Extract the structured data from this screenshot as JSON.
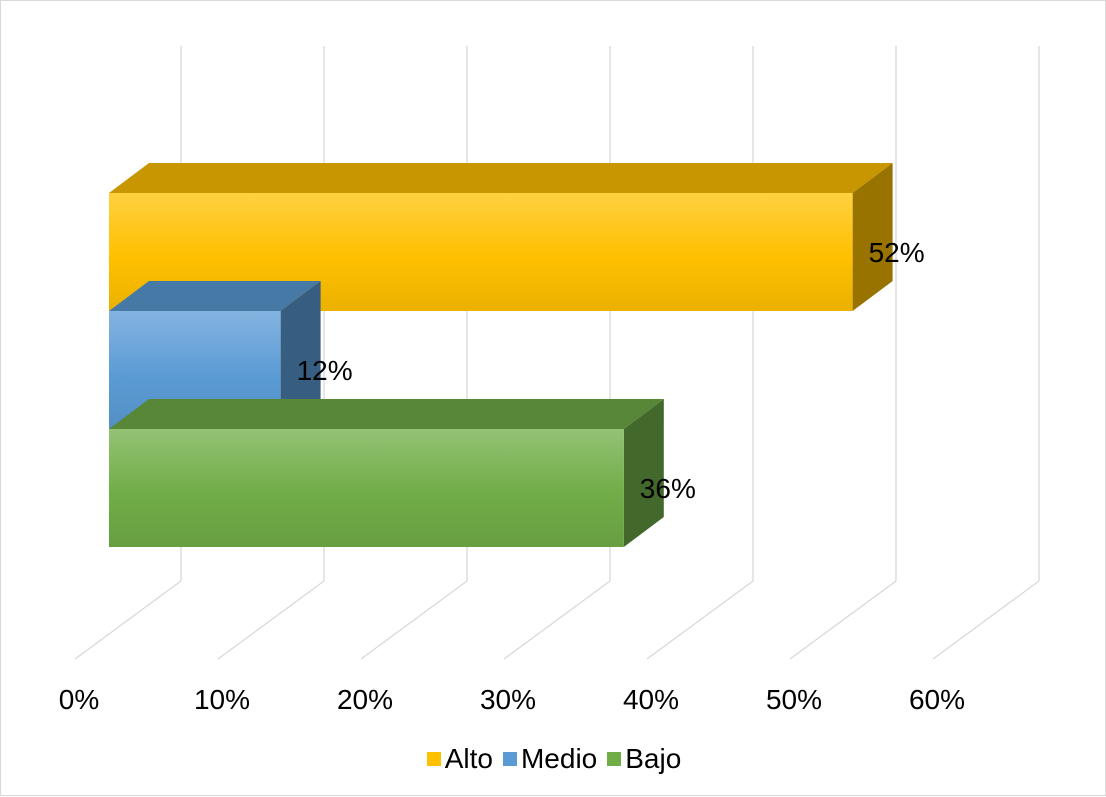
{
  "chart_data": {
    "type": "bar",
    "orientation": "horizontal",
    "three_d": true,
    "series": [
      {
        "name": "Alto",
        "value": 52,
        "label": "52%",
        "color": "#FFC000"
      },
      {
        "name": "Medio",
        "value": 12,
        "label": "12%",
        "color": "#5B9BD5"
      },
      {
        "name": "Bajo",
        "value": 36,
        "label": "36%",
        "color": "#70AD47"
      }
    ],
    "x_ticks": [
      "0%",
      "10%",
      "20%",
      "30%",
      "40%",
      "50%",
      "60%"
    ],
    "xlim": [
      0,
      60
    ],
    "grid": true,
    "legend_position": "bottom"
  }
}
